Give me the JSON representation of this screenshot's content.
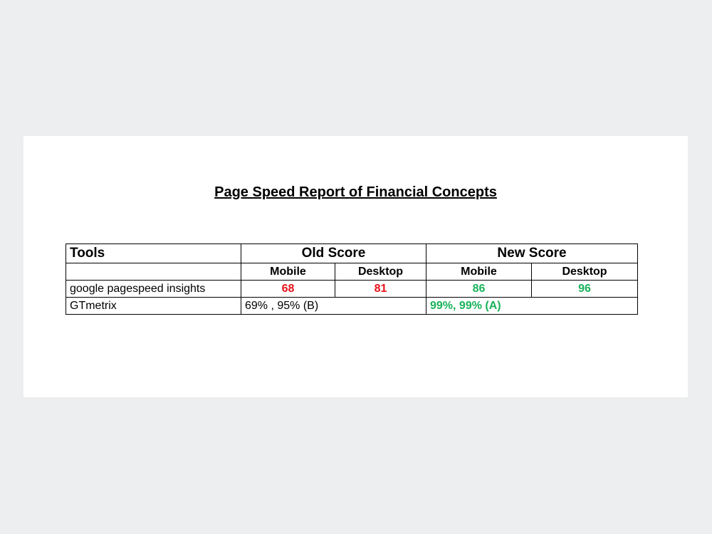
{
  "title": "Page Speed Report of Financial Concepts",
  "table": {
    "header": [
      "Tools",
      "Old Score",
      "New Score"
    ],
    "subheader": [
      "Mobile",
      "Desktop",
      "Mobile",
      "Desktop"
    ],
    "rows": [
      [
        "google pagespeed insights",
        "68",
        "81",
        "86",
        "96"
      ],
      [
        "GTmetrix",
        "69% , 95% (B)",
        "99%, 99% (A)"
      ]
    ]
  }
}
